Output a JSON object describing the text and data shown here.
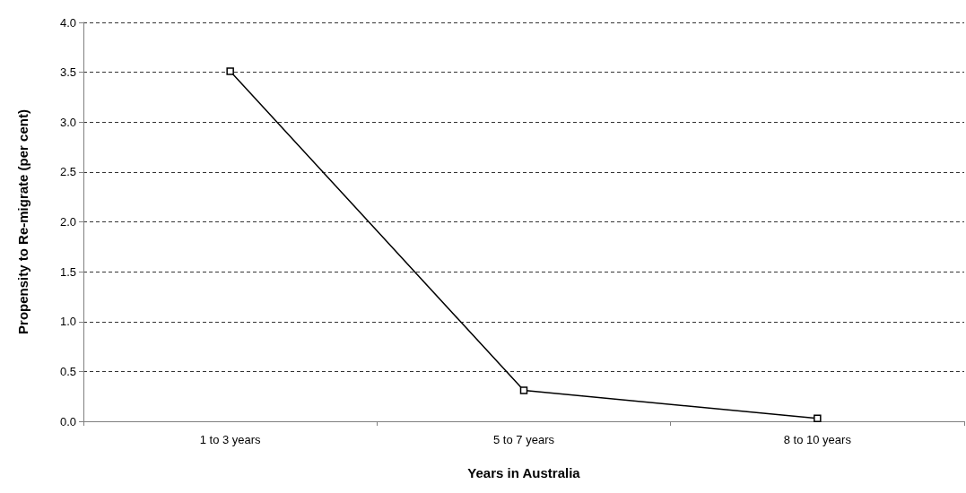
{
  "chart_data": {
    "type": "line",
    "xlabel": "Years in Australia",
    "ylabel": "Propensity to Re-migrate (per cent)",
    "categories": [
      "1 to 3 years",
      "5 to 7 years",
      "8 to 10 years"
    ],
    "series": [
      {
        "color": "#000000",
        "values": [
          3.51,
          0.31,
          0.03
        ]
      }
    ],
    "ylim": [
      0,
      4
    ],
    "yticks": [
      {
        "value": 0,
        "label": "0.0"
      },
      {
        "value": 0.5,
        "label": "0.5"
      },
      {
        "value": 1,
        "label": "1.0"
      },
      {
        "value": 1.5,
        "label": "1.5"
      },
      {
        "value": 2,
        "label": "2.0"
      },
      {
        "value": 2.5,
        "label": "2.5"
      },
      {
        "value": 3,
        "label": "3.0"
      },
      {
        "value": 3.5,
        "label": "3.5"
      },
      {
        "value": 4,
        "label": "4.0"
      }
    ],
    "grid": "y",
    "marker": "square",
    "line_style": "solid"
  }
}
